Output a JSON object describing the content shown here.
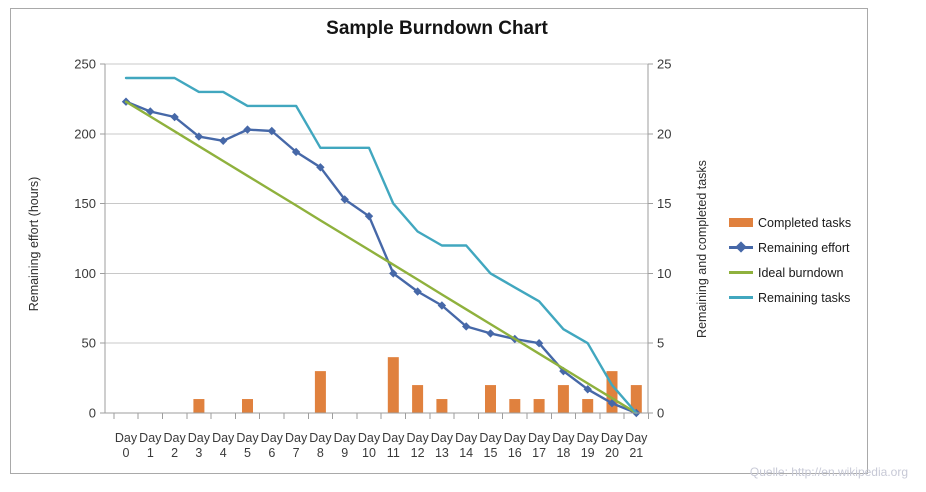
{
  "title": "Sample Burndown Chart",
  "watermark": "Quelle: http://en.wikipedia.org",
  "chart_data": {
    "type": "combo",
    "title": "Sample Burndown Chart",
    "categories": [
      "Day 0",
      "Day 1",
      "Day 2",
      "Day 3",
      "Day 4",
      "Day 5",
      "Day 6",
      "Day 7",
      "Day 8",
      "Day 9",
      "Day 10",
      "Day 11",
      "Day 12",
      "Day 13",
      "Day 14",
      "Day 15",
      "Day 16",
      "Day 17",
      "Day 18",
      "Day 19",
      "Day 20",
      "Day 21"
    ],
    "left_axis": {
      "label": "Remaining effort (hours)",
      "min": 0,
      "max": 250,
      "ticks": [
        0,
        50,
        100,
        150,
        200,
        250
      ]
    },
    "right_axis": {
      "label": "Remaining and completed tasks",
      "min": 0,
      "max": 25,
      "ticks": [
        0,
        5,
        10,
        15,
        20,
        25
      ]
    },
    "grid": true,
    "legend_position": "right",
    "series": [
      {
        "name": "Completed tasks",
        "type": "bar",
        "axis": "right",
        "color": "#e0813e",
        "values": [
          0,
          0,
          0,
          1,
          0,
          1,
          0,
          0,
          3,
          0,
          0,
          4,
          2,
          1,
          0,
          2,
          1,
          1,
          2,
          1,
          3,
          2
        ]
      },
      {
        "name": "Remaining effort",
        "type": "line",
        "marker": "diamond",
        "axis": "left",
        "color": "#4668a8",
        "values": [
          223,
          216,
          212,
          198,
          195,
          203,
          202,
          187,
          176,
          153,
          141,
          100,
          87,
          77,
          62,
          57,
          53,
          50,
          30,
          17,
          7,
          0
        ]
      },
      {
        "name": "Ideal burndown",
        "type": "line",
        "axis": "left",
        "color": "#8fb13d",
        "values": [
          223,
          212.4,
          201.8,
          191.1,
          180.5,
          169.9,
          159.3,
          148.7,
          138,
          127.4,
          116.8,
          106.2,
          95.6,
          84.9,
          74.3,
          63.7,
          53.1,
          42.5,
          31.9,
          21.2,
          10.6,
          0
        ]
      },
      {
        "name": "Remaining tasks",
        "type": "line",
        "axis": "right",
        "color": "#41a7bf",
        "values": [
          24,
          24,
          24,
          23,
          23,
          22,
          22,
          22,
          19,
          19,
          19,
          15,
          13,
          12,
          12,
          10,
          9,
          8,
          6,
          5,
          2,
          0
        ]
      }
    ],
    "colors": {
      "gridline": "#c8c8c8",
      "axis_line": "#9e9e9e",
      "tick_label": "#3a3a3a"
    }
  }
}
